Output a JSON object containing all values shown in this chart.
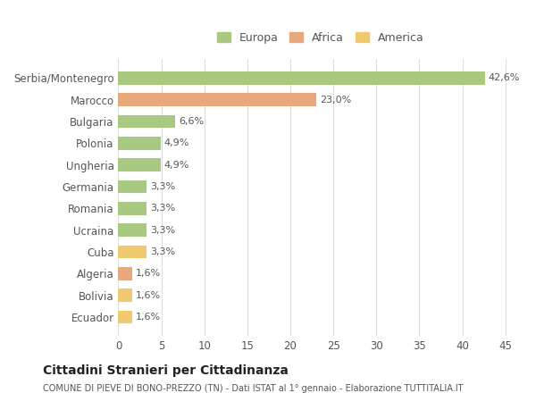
{
  "countries": [
    "Serbia/Montenegro",
    "Marocco",
    "Bulgaria",
    "Polonia",
    "Ungheria",
    "Germania",
    "Romania",
    "Ucraina",
    "Cuba",
    "Algeria",
    "Bolivia",
    "Ecuador"
  ],
  "values": [
    42.6,
    23.0,
    6.6,
    4.9,
    4.9,
    3.3,
    3.3,
    3.3,
    3.3,
    1.6,
    1.6,
    1.6
  ],
  "labels": [
    "42,6%",
    "23,0%",
    "6,6%",
    "4,9%",
    "4,9%",
    "3,3%",
    "3,3%",
    "3,3%",
    "3,3%",
    "1,6%",
    "1,6%",
    "1,6%"
  ],
  "continents": [
    "Europa",
    "Africa",
    "Europa",
    "Europa",
    "Europa",
    "Europa",
    "Europa",
    "Europa",
    "America",
    "Africa",
    "America",
    "America"
  ],
  "colors": {
    "Europa": "#a8c97f",
    "Africa": "#e8a87c",
    "America": "#f0c96e"
  },
  "legend": {
    "Europa": "#a8c97f",
    "Africa": "#e8a87c",
    "America": "#f0c96e"
  },
  "title": "Cittadini Stranieri per Cittadinanza",
  "subtitle": "COMUNE DI PIEVE DI BONO-PREZZO (TN) - Dati ISTAT al 1° gennaio - Elaborazione TUTTITALIA.IT",
  "xlim": [
    0,
    47
  ],
  "xticks": [
    0,
    5,
    10,
    15,
    20,
    25,
    30,
    35,
    40,
    45
  ],
  "background_color": "#ffffff",
  "grid_color": "#dddddd"
}
